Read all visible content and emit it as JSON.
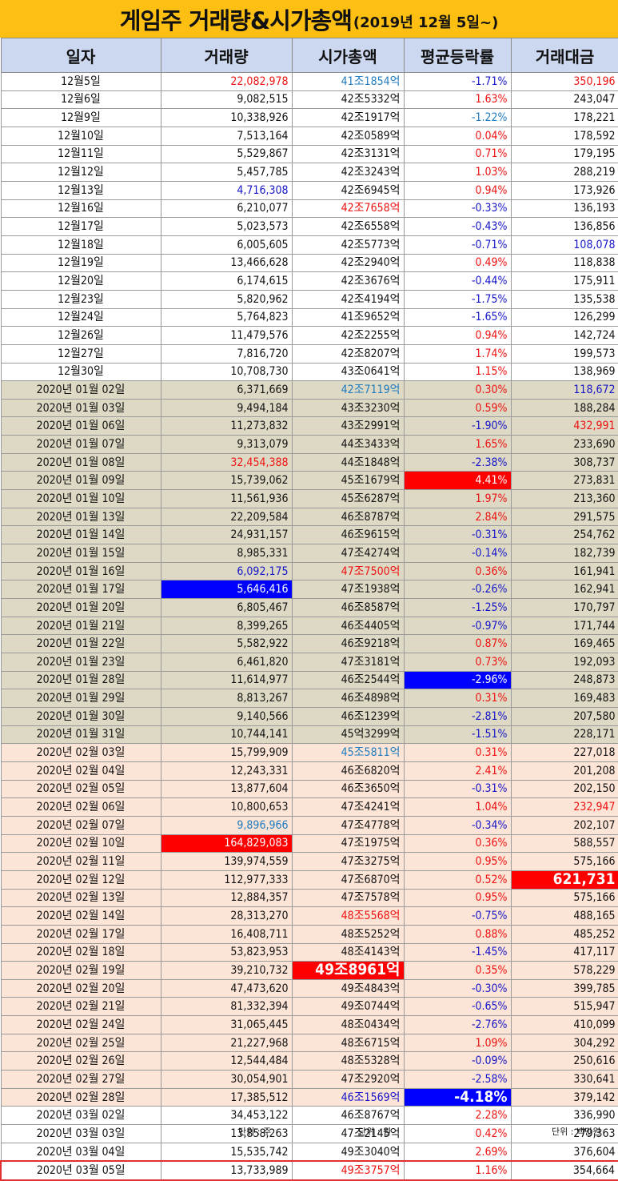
{
  "title": {
    "main": "게임주 거래량&시가총액",
    "sub": "(2019년 12월 5일~)"
  },
  "columns": [
    "일자",
    "거래량",
    "시가총액",
    "평균등락률",
    "거래대금"
  ],
  "footer": {
    "volume_unit": "단위 : 주",
    "cap_unit": "단위 : 원",
    "amount_unit": "단위 : 백만원"
  },
  "highlight_colors": {
    "red": "#fe0000",
    "blue": "#0000fe"
  },
  "rows": [
    {
      "date": "12월5일",
      "volume": "22,082,978",
      "cap": "41조1854억",
      "change": "-1.71%",
      "amount": "350,196",
      "bg": "w",
      "vs": "red",
      "cs": "sky",
      "as": "red"
    },
    {
      "date": "12월6일",
      "volume": "9,082,515",
      "cap": "42조5332억",
      "change": "1.63%",
      "amount": "243,047",
      "bg": "w"
    },
    {
      "date": "12월9일",
      "volume": "10,338,926",
      "cap": "42조1917억",
      "change": "-1.22%",
      "amount": "178,221",
      "bg": "w",
      "chs": "sky"
    },
    {
      "date": "12월10일",
      "volume": "7,513,164",
      "cap": "42조0589억",
      "change": "0.04%",
      "amount": "178,592",
      "bg": "w"
    },
    {
      "date": "12월11일",
      "volume": "5,529,867",
      "cap": "42조3131억",
      "change": "0.71%",
      "amount": "179,195",
      "bg": "w"
    },
    {
      "date": "12월12일",
      "volume": "5,457,785",
      "cap": "42조3243억",
      "change": "1.03%",
      "amount": "288,219",
      "bg": "w"
    },
    {
      "date": "12월13일",
      "volume": "4,716,308",
      "cap": "42조6945억",
      "change": "0.94%",
      "amount": "173,926",
      "bg": "w",
      "vs": "blue"
    },
    {
      "date": "12월16일",
      "volume": "6,210,077",
      "cap": "42조7658억",
      "change": "-0.33%",
      "amount": "136,193",
      "bg": "w",
      "cs": "red"
    },
    {
      "date": "12월17일",
      "volume": "5,023,573",
      "cap": "42조6558억",
      "change": "-0.43%",
      "amount": "136,856",
      "bg": "w"
    },
    {
      "date": "12월18일",
      "volume": "6,005,605",
      "cap": "42조5773억",
      "change": "-0.71%",
      "amount": "108,078",
      "bg": "w",
      "as": "blue"
    },
    {
      "date": "12월19일",
      "volume": "13,466,628",
      "cap": "42조2940억",
      "change": "0.49%",
      "amount": "118,838",
      "bg": "w"
    },
    {
      "date": "12월20일",
      "volume": "6,174,615",
      "cap": "42조3676억",
      "change": "-0.44%",
      "amount": "175,911",
      "bg": "w"
    },
    {
      "date": "12월23일",
      "volume": "5,820,962",
      "cap": "42조4194억",
      "change": "-1.75%",
      "amount": "135,538",
      "bg": "w"
    },
    {
      "date": "12월24일",
      "volume": "5,764,823",
      "cap": "41조9652억",
      "change": "-1.65%",
      "amount": "126,299",
      "bg": "w"
    },
    {
      "date": "12월26일",
      "volume": "11,479,576",
      "cap": "42조2255억",
      "change": "0.94%",
      "amount": "142,724",
      "bg": "w"
    },
    {
      "date": "12월27일",
      "volume": "7,816,720",
      "cap": "42조8207억",
      "change": "1.74%",
      "amount": "199,573",
      "bg": "w"
    },
    {
      "date": "12월30일",
      "volume": "10,708,730",
      "cap": "43조0641억",
      "change": "1.15%",
      "amount": "138,969",
      "bg": "w"
    },
    {
      "date": "2020년 01월 02일",
      "volume": "6,371,669",
      "cap": "42조7119억",
      "change": "0.30%",
      "amount": "118,672",
      "bg": "t",
      "cs": "sky",
      "as": "blue"
    },
    {
      "date": "2020년 01월 03일",
      "volume": "9,494,184",
      "cap": "43조3230억",
      "change": "0.59%",
      "amount": "188,284",
      "bg": "t"
    },
    {
      "date": "2020년 01월 06일",
      "volume": "11,273,832",
      "cap": "43조2991억",
      "change": "-1.90%",
      "amount": "432,991",
      "bg": "t",
      "as": "red"
    },
    {
      "date": "2020년 01월 07일",
      "volume": "9,313,079",
      "cap": "44조3433억",
      "change": "1.65%",
      "amount": "233,690",
      "bg": "t"
    },
    {
      "date": "2020년 01월 08일",
      "volume": "32,454,388",
      "cap": "44조1848억",
      "change": "-2.38%",
      "amount": "308,737",
      "bg": "t",
      "vs": "red"
    },
    {
      "date": "2020년 01월 09일",
      "volume": "15,739,062",
      "cap": "45조1679억",
      "change": "4.41%",
      "amount": "273,831",
      "bg": "t",
      "chs": "hl-red"
    },
    {
      "date": "2020년 01월 10일",
      "volume": "11,561,936",
      "cap": "45조6287억",
      "change": "1.97%",
      "amount": "213,360",
      "bg": "t"
    },
    {
      "date": "2020년 01월 13일",
      "volume": "22,209,584",
      "cap": "46조8787억",
      "change": "2.84%",
      "amount": "291,575",
      "bg": "t"
    },
    {
      "date": "2020년 01월 14일",
      "volume": "24,931,157",
      "cap": "46조9615억",
      "change": "-0.31%",
      "amount": "254,762",
      "bg": "t"
    },
    {
      "date": "2020년 01월 15일",
      "volume": "8,985,331",
      "cap": "47조4274억",
      "change": "-0.14%",
      "amount": "182,739",
      "bg": "t"
    },
    {
      "date": "2020년 01월 16일",
      "volume": "6,092,175",
      "cap": "47조7500억",
      "change": "0.36%",
      "amount": "161,941",
      "bg": "t",
      "vs": "blue",
      "cs": "red"
    },
    {
      "date": "2020년 01월 17일",
      "volume": "5,646,416",
      "cap": "47조1938억",
      "change": "-0.26%",
      "amount": "162,941",
      "bg": "t",
      "vs": "hl-blue"
    },
    {
      "date": "2020년 01월 20일",
      "volume": "6,805,467",
      "cap": "46조8587억",
      "change": "-1.25%",
      "amount": "170,797",
      "bg": "t"
    },
    {
      "date": "2020년 01월 21일",
      "volume": "8,399,265",
      "cap": "46조4405억",
      "change": "-0.97%",
      "amount": "171,744",
      "bg": "t"
    },
    {
      "date": "2020년 01월 22일",
      "volume": "5,582,922",
      "cap": "46조9218억",
      "change": "0.87%",
      "amount": "169,465",
      "bg": "t"
    },
    {
      "date": "2020년 01월 23일",
      "volume": "6,461,820",
      "cap": "47조3181억",
      "change": "0.73%",
      "amount": "192,093",
      "bg": "t"
    },
    {
      "date": "2020년 01월 28일",
      "volume": "11,614,977",
      "cap": "46조2544억",
      "change": "-2.96%",
      "amount": "248,873",
      "bg": "t",
      "chs": "hl-blue"
    },
    {
      "date": "2020년 01월 29일",
      "volume": "8,813,267",
      "cap": "46조4898억",
      "change": "0.31%",
      "amount": "169,483",
      "bg": "t"
    },
    {
      "date": "2020년 01월 30일",
      "volume": "9,140,566",
      "cap": "46조1239억",
      "change": "-2.81%",
      "amount": "207,580",
      "bg": "t"
    },
    {
      "date": "2020년 01월 31일",
      "volume": "10,744,141",
      "cap": "45억3299억",
      "change": "-1.51%",
      "amount": "228,171",
      "bg": "t"
    },
    {
      "date": "2020년 02월 03일",
      "volume": "15,799,909",
      "cap": "45조5811억",
      "change": "0.31%",
      "amount": "227,018",
      "bg": "p",
      "cs": "sky"
    },
    {
      "date": "2020년 02월 04일",
      "volume": "12,243,331",
      "cap": "46조6820억",
      "change": "2.41%",
      "amount": "201,208",
      "bg": "p"
    },
    {
      "date": "2020년 02월 05일",
      "volume": "13,877,604",
      "cap": "46조3650억",
      "change": "-0.31%",
      "amount": "202,150",
      "bg": "p"
    },
    {
      "date": "2020년 02월 06일",
      "volume": "10,800,653",
      "cap": "47조4241억",
      "change": "1.04%",
      "amount": "232,947",
      "bg": "p",
      "as": "red"
    },
    {
      "date": "2020년 02월 07일",
      "volume": "9,896,966",
      "cap": "47조4778억",
      "change": "-0.34%",
      "amount": "202,107",
      "bg": "p",
      "vs": "sky"
    },
    {
      "date": "2020년 02월 10일",
      "volume": "164,829,083",
      "cap": "47조1975억",
      "change": "0.36%",
      "amount": "588,557",
      "bg": "p",
      "vs": "hl-red"
    },
    {
      "date": "2020년 02월 11일",
      "volume": "139,974,559",
      "cap": "47조3275억",
      "change": "0.95%",
      "amount": "575,166",
      "bg": "p"
    },
    {
      "date": "2020년 02월 12일",
      "volume": "112,977,333",
      "cap": "47조6870억",
      "change": "0.52%",
      "amount": "621,731",
      "bg": "p",
      "as": "hl-red-xl"
    },
    {
      "date": "2020년 02월 13일",
      "volume": "12,884,357",
      "cap": "47조7578억",
      "change": "0.95%",
      "amount": "575,166",
      "bg": "p"
    },
    {
      "date": "2020년 02월 14일",
      "volume": "28,313,270",
      "cap": "48조5568억",
      "change": "-0.75%",
      "amount": "488,165",
      "bg": "p",
      "cs": "red"
    },
    {
      "date": "2020년 02월 17일",
      "volume": "16,408,711",
      "cap": "48조5252억",
      "change": "0.88%",
      "amount": "485,252",
      "bg": "p"
    },
    {
      "date": "2020년 02월 18일",
      "volume": "53,823,953",
      "cap": "48조4143억",
      "change": "-1.45%",
      "amount": "417,117",
      "bg": "p"
    },
    {
      "date": "2020년 02월 19일",
      "volume": "39,210,732",
      "cap": "49조8961억",
      "change": "0.35%",
      "amount": "578,229",
      "bg": "p",
      "cs": "hl-red-xl"
    },
    {
      "date": "2020년 02월 20일",
      "volume": "47,473,620",
      "cap": "49조4843억",
      "change": "-0.30%",
      "amount": "399,785",
      "bg": "p"
    },
    {
      "date": "2020년 02월 21일",
      "volume": "81,332,394",
      "cap": "49조0744억",
      "change": "-0.65%",
      "amount": "515,947",
      "bg": "p"
    },
    {
      "date": "2020년 02월 24일",
      "volume": "31,065,445",
      "cap": "48조0434억",
      "change": "-2.76%",
      "amount": "410,099",
      "bg": "p"
    },
    {
      "date": "2020년 02월 25일",
      "volume": "21,227,968",
      "cap": "48조6715억",
      "change": "1.09%",
      "amount": "304,292",
      "bg": "p"
    },
    {
      "date": "2020년 02월 26일",
      "volume": "12,544,484",
      "cap": "48조5328억",
      "change": "-0.09%",
      "amount": "250,616",
      "bg": "p"
    },
    {
      "date": "2020년 02월 27일",
      "volume": "30,054,901",
      "cap": "47조2920억",
      "change": "-2.58%",
      "amount": "330,641",
      "bg": "p"
    },
    {
      "date": "2020년 02월 28일",
      "volume": "17,385,512",
      "cap": "46조1569억",
      "change": "-4.18%",
      "amount": "379,142",
      "bg": "p",
      "cs": "blue",
      "chs": "hl-blue-xl"
    },
    {
      "date": "2020년 03월 02일",
      "volume": "34,453,122",
      "cap": "46조8767억",
      "change": "2.28%",
      "amount": "336,990",
      "bg": "w"
    },
    {
      "date": "2020년 03월 03일",
      "volume": "13,858,263",
      "cap": "47조2145억",
      "change": "0.42%",
      "amount": "279,363",
      "bg": "w"
    },
    {
      "date": "2020년 03월 04일",
      "volume": "15,535,742",
      "cap": "49조3040억",
      "change": "2.69%",
      "amount": "376,604",
      "bg": "w"
    },
    {
      "date": "2020년 03월 05일",
      "volume": "13,733,989",
      "cap": "49조3757억",
      "change": "1.16%",
      "amount": "354,664",
      "bg": "w",
      "cs": "red",
      "last": true
    }
  ]
}
